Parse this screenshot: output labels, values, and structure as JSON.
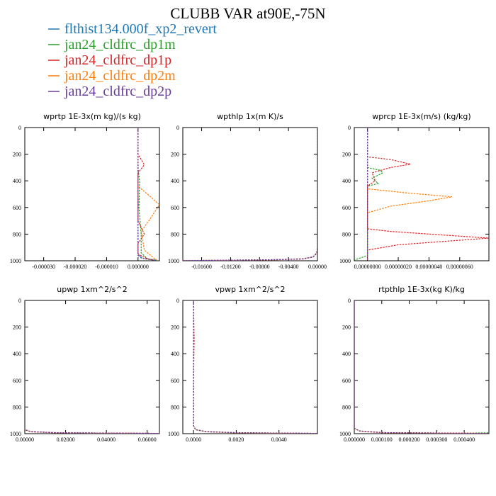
{
  "title": "CLUBB VAR at90E,-75N",
  "colors": {
    "blue": "#1f77b4",
    "green": "#2ca02c",
    "red": "#d62728",
    "orange": "#ff7f0e",
    "purple": "#6a3d9a"
  },
  "legend": [
    {
      "name": "flthist134.000f_xp2_revert",
      "color": "#1f77b4"
    },
    {
      "name": "jan24_cldfrc_dp1m",
      "color": "#2ca02c"
    },
    {
      "name": "jan24_cldfrc_dp1p",
      "color": "#d62728"
    },
    {
      "name": "jan24_cldfrc_dp2m",
      "color": "#ff7f0e"
    },
    {
      "name": "jan24_cldfrc_dp2p",
      "color": "#6a3d9a"
    }
  ],
  "chart_data": [
    {
      "type": "line",
      "title": "wprtp   1E-3x(m kg)/(s kg)",
      "xlim": [
        -3.6e-05,
        6.8e-06
      ],
      "ylim": [
        1000,
        0
      ],
      "xticks": [
        -3e-05,
        -2e-05,
        -1e-05,
        0
      ],
      "xtick_labels": [
        "-0.000030",
        "-0.000020",
        "-0.000010",
        "0.000000"
      ],
      "yticks": [
        0,
        200,
        400,
        600,
        800,
        1000
      ],
      "ytick_labels": [
        "0",
        "200",
        "400",
        "600",
        "800",
        "1000"
      ],
      "series": [
        {
          "color": "#1f77b4",
          "points": [
            [
              0,
              0
            ],
            [
              0,
              950
            ],
            [
              1e-06,
              980
            ],
            [
              4e-06,
              990
            ],
            [
              6e-06,
              995
            ]
          ]
        },
        {
          "color": "#2ca02c",
          "points": [
            [
              0,
              0
            ],
            [
              0,
              300
            ],
            [
              5e-07,
              400
            ],
            [
              3e-07,
              600
            ],
            [
              1e-06,
              800
            ],
            [
              1e-06,
              940
            ],
            [
              3e-06,
              985
            ],
            [
              5e-06,
              995
            ]
          ]
        },
        {
          "color": "#d62728",
          "points": [
            [
              0,
              0
            ],
            [
              0,
              200
            ],
            [
              2e-06,
              280
            ],
            [
              0,
              340
            ],
            [
              0,
              700
            ],
            [
              2e-06,
              800
            ],
            [
              0,
              870
            ],
            [
              0,
              950
            ],
            [
              3e-06,
              985
            ],
            [
              5e-06,
              995
            ]
          ]
        },
        {
          "color": "#ff7f0e",
          "points": [
            [
              0,
              0
            ],
            [
              0,
              440
            ],
            [
              4e-06,
              520
            ],
            [
              6.8e-06,
              580
            ],
            [
              4e-06,
              680
            ],
            [
              1e-06,
              780
            ],
            [
              2e-06,
              920
            ],
            [
              5e-06,
              980
            ],
            [
              6e-06,
              995
            ]
          ]
        },
        {
          "color": "#6a3d9a",
          "points": [
            [
              0,
              0
            ],
            [
              0,
              960
            ],
            [
              2e-06,
              985
            ],
            [
              5e-06,
              995
            ]
          ]
        }
      ]
    },
    {
      "type": "line",
      "title": "wpthlp   1x(m K)/s",
      "xlim": [
        -0.0186,
        0
      ],
      "ylim": [
        1000,
        0
      ],
      "xticks": [
        -0.016,
        -0.012,
        -0.008,
        -0.004,
        0
      ],
      "xtick_labels": [
        "-0.01600",
        "-0.01200",
        "-0.00800",
        "-0.00400",
        "0.00000"
      ],
      "yticks": [
        0,
        200,
        400,
        600,
        800,
        1000
      ],
      "ytick_labels": [
        "0",
        "200",
        "400",
        "600",
        "800",
        "1000"
      ],
      "series": [
        {
          "color": "#1f77b4",
          "points": [
            [
              -0.0186,
              999
            ],
            [
              -0.006,
              992
            ],
            [
              -0.002,
              985
            ],
            [
              -0.0006,
              970
            ],
            [
              -0.0001,
              940
            ],
            [
              0,
              900
            ],
            [
              0,
              0
            ]
          ]
        },
        {
          "color": "#2ca02c",
          "points": [
            [
              -0.0186,
              999
            ],
            [
              -0.006,
              993
            ],
            [
              -0.002,
              986
            ],
            [
              -0.0006,
              971
            ],
            [
              -0.0001,
              942
            ],
            [
              0,
              900
            ],
            [
              0,
              0
            ]
          ]
        },
        {
          "color": "#d62728",
          "points": [
            [
              -0.0186,
              999
            ],
            [
              -0.006,
              993
            ],
            [
              -0.002,
              987
            ],
            [
              -0.0006,
              972
            ],
            [
              -0.0001,
              945
            ],
            [
              0,
              900
            ],
            [
              0,
              0
            ]
          ]
        },
        {
          "color": "#ff7f0e",
          "points": [
            [
              -0.0186,
              999
            ],
            [
              -0.006,
              992
            ],
            [
              -0.002,
              985
            ],
            [
              -0.0006,
              970
            ],
            [
              -0.0001,
              941
            ],
            [
              0,
              900
            ],
            [
              0,
              0
            ]
          ]
        },
        {
          "color": "#6a3d9a",
          "points": [
            [
              -0.0186,
              999
            ],
            [
              -0.006,
              992
            ],
            [
              -0.002,
              986
            ],
            [
              -0.0006,
              971
            ],
            [
              -0.0001,
              942
            ],
            [
              0,
              900
            ],
            [
              0,
              0
            ]
          ]
        }
      ]
    },
    {
      "type": "line",
      "title": "wprcp   1E-3x(m/s) (kg/kg)",
      "xlim": [
        -8.6e-08,
        7.9e-07
      ],
      "ylim": [
        1000,
        0
      ],
      "xticks": [
        0,
        2e-07,
        4e-07,
        6e-07
      ],
      "xtick_labels": [
        "0.00000000",
        "0.00000020",
        "0.00000040",
        "0.00000060"
      ],
      "yticks": [
        0,
        200,
        400,
        600,
        800,
        1000
      ],
      "ytick_labels": [
        "0",
        "200",
        "400",
        "600",
        "800",
        "1000"
      ],
      "series": [
        {
          "color": "#1f77b4",
          "points": [
            [
              0,
              0
            ],
            [
              0,
              1000
            ]
          ]
        },
        {
          "color": "#2ca02c",
          "points": [
            [
              0,
              0
            ],
            [
              0,
              300
            ],
            [
              8e-08,
              320
            ],
            [
              1e-07,
              340
            ],
            [
              3e-08,
              380
            ],
            [
              7e-08,
              420
            ],
            [
              0,
              440
            ],
            [
              0,
              960
            ],
            [
              -8.6e-08,
              995
            ]
          ]
        },
        {
          "color": "#d62728",
          "points": [
            [
              0,
              0
            ],
            [
              0,
              220
            ],
            [
              1.5e-07,
              240
            ],
            [
              2.8e-07,
              275
            ],
            [
              1.5e-07,
              300
            ],
            [
              3e-08,
              340
            ],
            [
              5e-08,
              400
            ],
            [
              0,
              440
            ],
            [
              0,
              760
            ],
            [
              1.5e-07,
              780
            ],
            [
              7.9e-07,
              830
            ],
            [
              2e-07,
              880
            ],
            [
              0,
              920
            ],
            [
              0,
              1000
            ]
          ]
        },
        {
          "color": "#ff7f0e",
          "points": [
            [
              0,
              0
            ],
            [
              0,
              460
            ],
            [
              2.5e-07,
              490
            ],
            [
              5.5e-07,
              520
            ],
            [
              4e-07,
              550
            ],
            [
              1.5e-07,
              590
            ],
            [
              0,
              640
            ],
            [
              0,
              1000
            ]
          ]
        },
        {
          "color": "#6a3d9a",
          "points": [
            [
              0,
              0
            ],
            [
              0,
              1000
            ]
          ]
        }
      ]
    },
    {
      "type": "line",
      "title": "upwp   1xm^2/s^2",
      "xlim": [
        0,
        0.066
      ],
      "ylim": [
        1000,
        0
      ],
      "xticks": [
        0,
        0.02,
        0.04,
        0.06
      ],
      "xtick_labels": [
        "0.00000",
        "0.02000",
        "0.04000",
        "0.06000"
      ],
      "yticks": [
        0,
        200,
        400,
        600,
        800,
        1000
      ],
      "ytick_labels": [
        "0",
        "200",
        "400",
        "600",
        "800",
        "1000"
      ],
      "series": [
        {
          "color": "#1f77b4",
          "points": [
            [
              0,
              0
            ],
            [
              0,
              970
            ],
            [
              0.003,
              985
            ],
            [
              0.015,
              993
            ],
            [
              0.066,
              998
            ]
          ]
        },
        {
          "color": "#2ca02c",
          "points": [
            [
              0,
              0
            ],
            [
              0,
              971
            ],
            [
              0.003,
              986
            ],
            [
              0.015,
              994
            ],
            [
              0.066,
              998
            ]
          ]
        },
        {
          "color": "#d62728",
          "points": [
            [
              0,
              0
            ],
            [
              0,
              970
            ],
            [
              0.003,
              985
            ],
            [
              0.015,
              993
            ],
            [
              0.066,
              998
            ]
          ]
        },
        {
          "color": "#ff7f0e",
          "points": [
            [
              0,
              0
            ],
            [
              0,
              972
            ],
            [
              0.003,
              986
            ],
            [
              0.015,
              994
            ],
            [
              0.066,
              998
            ]
          ]
        },
        {
          "color": "#6a3d9a",
          "points": [
            [
              0,
              0
            ],
            [
              0,
              970
            ],
            [
              0.003,
              985
            ],
            [
              0.015,
              993
            ],
            [
              0.066,
              998
            ]
          ]
        }
      ]
    },
    {
      "type": "line",
      "title": "vpwp   1xm^2/s^2",
      "xlim": [
        -0.0005,
        0.0058
      ],
      "ylim": [
        1000,
        0
      ],
      "xticks": [
        0,
        0.002,
        0.004
      ],
      "xtick_labels": [
        "0.0000",
        "0.0020",
        "0.0040"
      ],
      "yticks": [
        0,
        200,
        400,
        600,
        800,
        1000
      ],
      "ytick_labels": [
        "0",
        "200",
        "400",
        "600",
        "800",
        "1000"
      ],
      "series": [
        {
          "color": "#1f77b4",
          "points": [
            [
              0,
              0
            ],
            [
              0,
              940
            ],
            [
              0.0001,
              970
            ],
            [
              0.0006,
              985
            ],
            [
              0.002,
              993
            ],
            [
              0.0058,
              998
            ]
          ]
        },
        {
          "color": "#2ca02c",
          "points": [
            [
              0,
              0
            ],
            [
              0,
              941
            ],
            [
              0.0001,
              971
            ],
            [
              0.0006,
              986
            ],
            [
              0.002,
              994
            ],
            [
              0.0058,
              998
            ]
          ]
        },
        {
          "color": "#d62728",
          "points": [
            [
              0,
              0
            ],
            [
              3e-05,
              300
            ],
            [
              0,
              600
            ],
            [
              0,
              940
            ],
            [
              0.0001,
              970
            ],
            [
              0.0006,
              985
            ],
            [
              0.002,
              993
            ],
            [
              0.0058,
              998
            ]
          ]
        },
        {
          "color": "#ff7f0e",
          "points": [
            [
              0,
              0
            ],
            [
              0,
              942
            ],
            [
              0.0001,
              971
            ],
            [
              0.0006,
              986
            ],
            [
              0.002,
              994
            ],
            [
              0.0058,
              999
            ]
          ]
        },
        {
          "color": "#6a3d9a",
          "points": [
            [
              0,
              0
            ],
            [
              0,
              940
            ],
            [
              0.0001,
              970
            ],
            [
              0.0006,
              985
            ],
            [
              0.002,
              993
            ],
            [
              0.0058,
              998
            ]
          ]
        }
      ]
    },
    {
      "type": "line",
      "title": "rtpthlp   1E-3x(kg K)/kg",
      "xlim": [
        0,
        0.00049
      ],
      "ylim": [
        1000,
        0
      ],
      "xticks": [
        0,
        0.0001,
        0.0002,
        0.0003,
        0.0004
      ],
      "xtick_labels": [
        "0.000000",
        "0.000100",
        "0.000200",
        "0.000300",
        "0.000400"
      ],
      "yticks": [
        0,
        200,
        400,
        600,
        800,
        1000
      ],
      "ytick_labels": [
        "0",
        "200",
        "400",
        "600",
        "800",
        "1000"
      ],
      "series": [
        {
          "color": "#1f77b4",
          "points": [
            [
              0,
              0
            ],
            [
              0,
              960
            ],
            [
              2e-05,
              980
            ],
            [
              0.0001,
              992
            ],
            [
              0.00049,
              998
            ]
          ]
        },
        {
          "color": "#2ca02c",
          "points": [
            [
              0,
              0
            ],
            [
              0,
              960
            ],
            [
              2e-05,
              980
            ],
            [
              0.0001,
              992
            ],
            [
              0.0004,
              997
            ],
            [
              0.00049,
              993
            ]
          ]
        },
        {
          "color": "#d62728",
          "points": [
            [
              0,
              0
            ],
            [
              0,
              960
            ],
            [
              2e-05,
              981
            ],
            [
              0.0001,
              993
            ],
            [
              0.00049,
              998
            ]
          ]
        },
        {
          "color": "#ff7f0e",
          "points": [
            [
              0,
              0
            ],
            [
              0,
              962
            ],
            [
              2e-05,
              981
            ],
            [
              0.0001,
              992
            ],
            [
              0.00049,
              998
            ]
          ]
        },
        {
          "color": "#6a3d9a",
          "points": [
            [
              0,
              0
            ],
            [
              0,
              960
            ],
            [
              2e-05,
              980
            ],
            [
              0.0001,
              992
            ],
            [
              0.00049,
              998
            ]
          ]
        }
      ]
    }
  ]
}
